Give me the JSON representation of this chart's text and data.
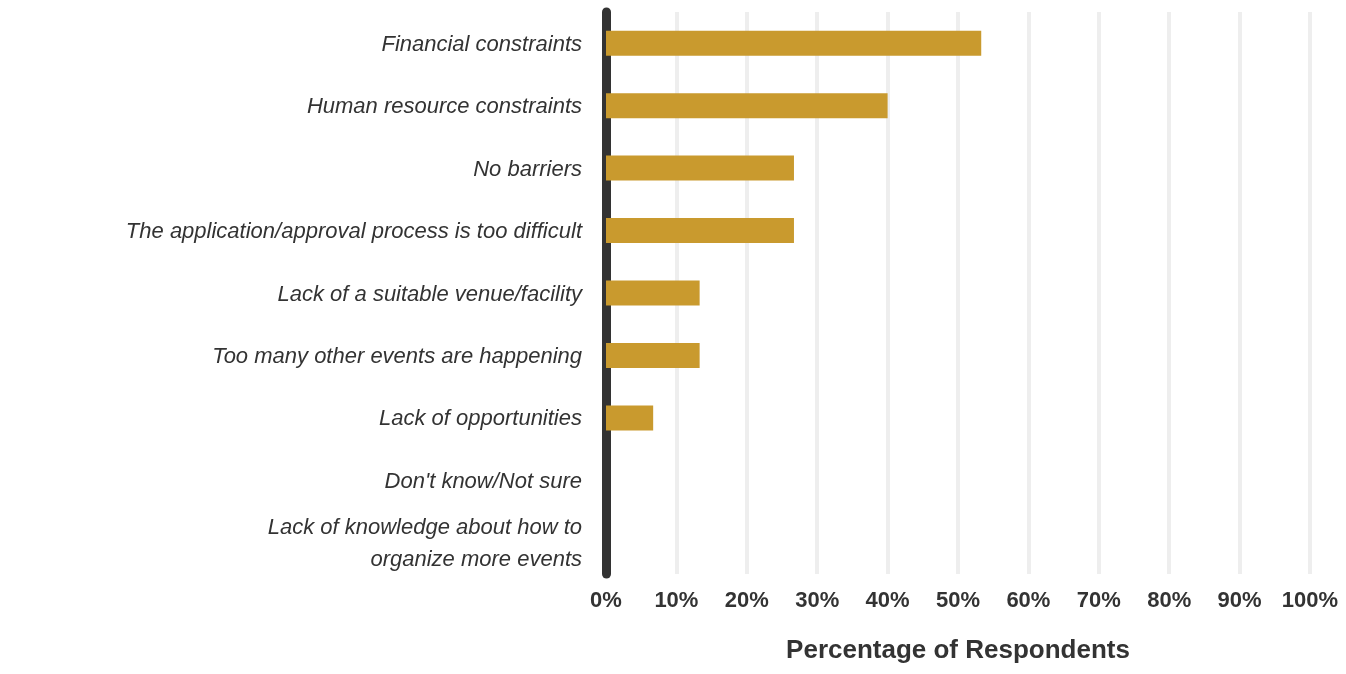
{
  "chart_data": {
    "type": "bar",
    "orientation": "horizontal",
    "xlabel": "Percentage of Respondents",
    "categories": [
      "Financial constraints",
      "Human resource constraints",
      "No barriers",
      "The application/approval process is too difficult",
      "Lack of a suitable venue/facility",
      "Too many other events are happening",
      "Lack of opportunities",
      "Don't know/Not sure",
      "Lack of knowledge about how to\norganize more events"
    ],
    "values": [
      53.3,
      40,
      26.7,
      26.7,
      13.3,
      13.3,
      6.7,
      0,
      0
    ],
    "color": "#c99a2e",
    "xlim": [
      0,
      100
    ],
    "xticks": [
      {
        "value": 0,
        "label": "0%"
      },
      {
        "value": 10,
        "label": "10%"
      },
      {
        "value": 20,
        "label": "20%"
      },
      {
        "value": 30,
        "label": "30%"
      },
      {
        "value": 40,
        "label": "40%"
      },
      {
        "value": 50,
        "label": "50%"
      },
      {
        "value": 60,
        "label": "60%"
      },
      {
        "value": 70,
        "label": "70%"
      },
      {
        "value": 80,
        "label": "80%"
      },
      {
        "value": 90,
        "label": "90%"
      },
      {
        "value": 100,
        "label": "100%"
      }
    ],
    "grid": "x"
  }
}
